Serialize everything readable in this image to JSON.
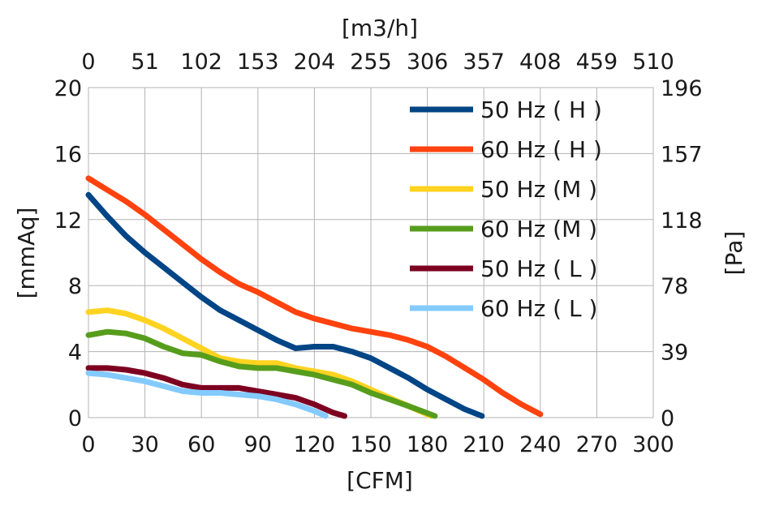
{
  "chart_data": {
    "type": "line",
    "xlabel": "[CFM]",
    "x2label": "[m3/h]",
    "ylabel": "[mmAq]",
    "y2label": "[Pa]",
    "xlim": [
      0,
      300
    ],
    "ylim": [
      0,
      20
    ],
    "x_ticks": [
      "0",
      "30",
      "60",
      "90",
      "120",
      "150",
      "180",
      "210",
      "240",
      "270",
      "300"
    ],
    "x2_ticks": [
      "0",
      "51",
      "102",
      "153",
      "204",
      "255",
      "306",
      "357",
      "408",
      "459",
      "510"
    ],
    "y_ticks": [
      "0",
      "4",
      "8",
      "12",
      "16",
      "20"
    ],
    "y2_ticks": [
      "0",
      "39",
      "78",
      "118",
      "157",
      "196"
    ],
    "grid": true,
    "legend_position": "top-right",
    "series": [
      {
        "name": "50 Hz ( H )",
        "color": "#004586",
        "points": [
          [
            0,
            13.5
          ],
          [
            10,
            12.2
          ],
          [
            20,
            11.0
          ],
          [
            30,
            10.0
          ],
          [
            40,
            9.1
          ],
          [
            50,
            8.2
          ],
          [
            60,
            7.3
          ],
          [
            70,
            6.5
          ],
          [
            80,
            5.9
          ],
          [
            90,
            5.3
          ],
          [
            100,
            4.7
          ],
          [
            110,
            4.2
          ],
          [
            120,
            4.3
          ],
          [
            130,
            4.3
          ],
          [
            140,
            4.0
          ],
          [
            150,
            3.6
          ],
          [
            160,
            3.0
          ],
          [
            170,
            2.4
          ],
          [
            180,
            1.7
          ],
          [
            190,
            1.1
          ],
          [
            200,
            0.5
          ],
          [
            209,
            0.1
          ]
        ]
      },
      {
        "name": "60 Hz ( H )",
        "color": "#ff420e",
        "points": [
          [
            0,
            14.5
          ],
          [
            10,
            13.8
          ],
          [
            20,
            13.1
          ],
          [
            30,
            12.3
          ],
          [
            40,
            11.4
          ],
          [
            50,
            10.5
          ],
          [
            60,
            9.6
          ],
          [
            70,
            8.8
          ],
          [
            80,
            8.1
          ],
          [
            90,
            7.6
          ],
          [
            100,
            7.0
          ],
          [
            110,
            6.4
          ],
          [
            120,
            6.0
          ],
          [
            130,
            5.7
          ],
          [
            140,
            5.4
          ],
          [
            150,
            5.2
          ],
          [
            160,
            5.0
          ],
          [
            170,
            4.7
          ],
          [
            180,
            4.3
          ],
          [
            190,
            3.7
          ],
          [
            200,
            3.0
          ],
          [
            210,
            2.3
          ],
          [
            220,
            1.5
          ],
          [
            230,
            0.8
          ],
          [
            240,
            0.2
          ]
        ]
      },
      {
        "name": "50 Hz (M )",
        "color": "#ffd320",
        "points": [
          [
            0,
            6.4
          ],
          [
            10,
            6.5
          ],
          [
            20,
            6.3
          ],
          [
            30,
            5.9
          ],
          [
            40,
            5.4
          ],
          [
            50,
            4.8
          ],
          [
            60,
            4.2
          ],
          [
            70,
            3.6
          ],
          [
            80,
            3.4
          ],
          [
            90,
            3.3
          ],
          [
            100,
            3.3
          ],
          [
            110,
            3.0
          ],
          [
            120,
            2.8
          ],
          [
            130,
            2.6
          ],
          [
            140,
            2.2
          ],
          [
            150,
            1.7
          ],
          [
            160,
            1.2
          ],
          [
            170,
            0.7
          ],
          [
            182,
            0.1
          ]
        ]
      },
      {
        "name": "60 Hz (M )",
        "color": "#579d1c",
        "points": [
          [
            0,
            5.0
          ],
          [
            10,
            5.2
          ],
          [
            20,
            5.1
          ],
          [
            30,
            4.8
          ],
          [
            40,
            4.3
          ],
          [
            50,
            3.9
          ],
          [
            60,
            3.8
          ],
          [
            70,
            3.4
          ],
          [
            80,
            3.1
          ],
          [
            90,
            3.0
          ],
          [
            100,
            3.0
          ],
          [
            110,
            2.8
          ],
          [
            120,
            2.6
          ],
          [
            130,
            2.3
          ],
          [
            140,
            2.0
          ],
          [
            150,
            1.5
          ],
          [
            160,
            1.1
          ],
          [
            170,
            0.7
          ],
          [
            184,
            0.1
          ]
        ]
      },
      {
        "name": "50 Hz ( L )",
        "color": "#7e0021",
        "points": [
          [
            0,
            3.0
          ],
          [
            10,
            3.0
          ],
          [
            20,
            2.9
          ],
          [
            30,
            2.7
          ],
          [
            40,
            2.4
          ],
          [
            50,
            2.0
          ],
          [
            60,
            1.8
          ],
          [
            70,
            1.8
          ],
          [
            80,
            1.8
          ],
          [
            90,
            1.6
          ],
          [
            100,
            1.4
          ],
          [
            110,
            1.2
          ],
          [
            120,
            0.8
          ],
          [
            130,
            0.3
          ],
          [
            136,
            0.1
          ]
        ]
      },
      {
        "name": "60 Hz ( L )",
        "color": "#83caff",
        "points": [
          [
            0,
            2.7
          ],
          [
            10,
            2.6
          ],
          [
            20,
            2.4
          ],
          [
            30,
            2.2
          ],
          [
            40,
            1.9
          ],
          [
            50,
            1.6
          ],
          [
            60,
            1.5
          ],
          [
            70,
            1.5
          ],
          [
            80,
            1.4
          ],
          [
            90,
            1.3
          ],
          [
            100,
            1.1
          ],
          [
            110,
            0.8
          ],
          [
            120,
            0.4
          ],
          [
            126,
            0.1
          ]
        ]
      }
    ]
  }
}
